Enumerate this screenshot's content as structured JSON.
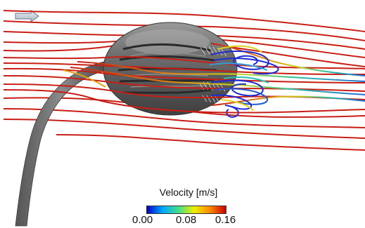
{
  "colorbar": {
    "title": "Velocity [m/s]",
    "ticks": [
      "0.00",
      "0.08",
      "0.16"
    ],
    "colors": [
      "#0000cc",
      "#00aaff",
      "#44dd88",
      "#eeee00",
      "#ff8800",
      "#cc0000"
    ]
  },
  "flow_direction_icon": "right-arrow-icon",
  "streamline_color_fast": "#c81e14",
  "streamline_color_slow": "#1e2ad2",
  "body_color": "#6b6b6b"
}
